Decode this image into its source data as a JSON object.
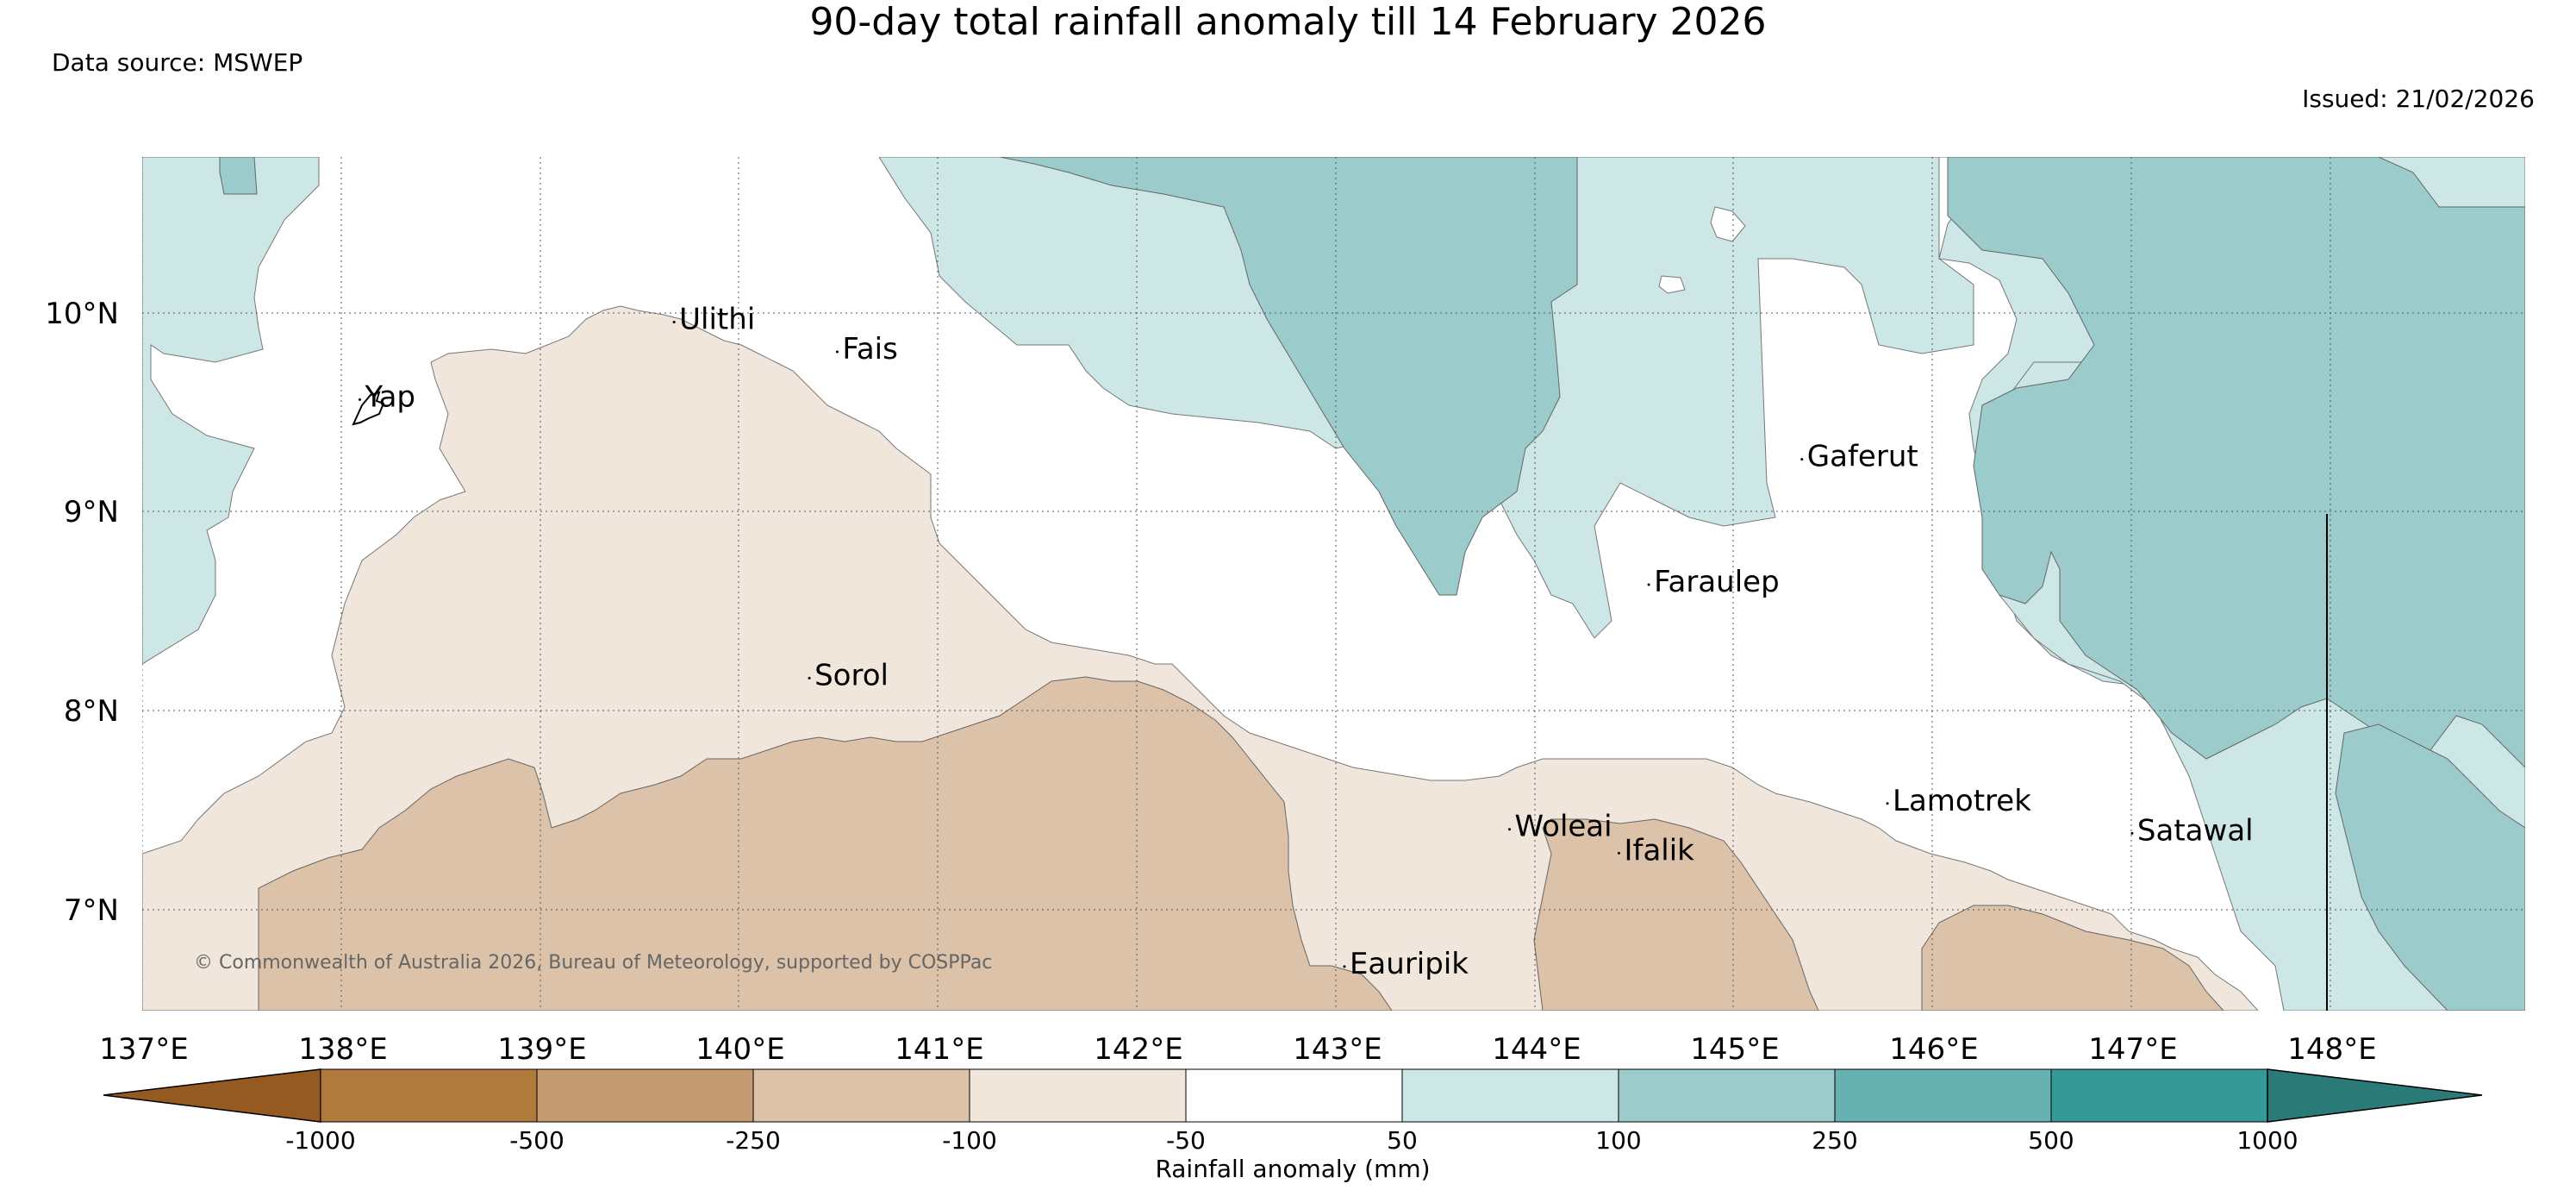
{
  "title": "90-day total rainfall anomaly till 14 February 2026",
  "data_source": "Data source: MSWEP",
  "issued": "Issued: 21/02/2026",
  "copyright": "© Commonwealth of Australia 2026, Bureau of Meteorology, supported by COSPPac",
  "map": {
    "lon_range": [
      137,
      148.85
    ],
    "lat_range": [
      6.5,
      10.8
    ],
    "lon_ticks": [
      "137°E",
      "138°E",
      "139°E",
      "140°E",
      "141°E",
      "142°E",
      "143°E",
      "144°E",
      "145°E",
      "146°E",
      "147°E",
      "148°E"
    ],
    "lat_ticks": [
      "10°N",
      "9°N",
      "8°N",
      "7°N"
    ],
    "places": [
      {
        "name": "Ulithi",
        "lon": 139.7,
        "lat": 9.92
      },
      {
        "name": "Fais",
        "lon": 140.52,
        "lat": 9.77
      },
      {
        "name": "Yap",
        "lon": 138.12,
        "lat": 9.53
      },
      {
        "name": "Gaferut",
        "lon": 145.37,
        "lat": 9.23
      },
      {
        "name": "Faraulep",
        "lon": 144.6,
        "lat": 8.6
      },
      {
        "name": "Sorol",
        "lon": 140.38,
        "lat": 8.13
      },
      {
        "name": "Woleai",
        "lon": 143.9,
        "lat": 7.37
      },
      {
        "name": "Ifalik",
        "lon": 144.45,
        "lat": 7.25
      },
      {
        "name": "Lamotrek",
        "lon": 145.8,
        "lat": 7.5
      },
      {
        "name": "Satawal",
        "lon": 147.03,
        "lat": 7.35
      },
      {
        "name": "Eauripik",
        "lon": 143.07,
        "lat": 6.68
      }
    ]
  },
  "colorbar": {
    "label": "Rainfall anomaly (mm)",
    "ticks": [
      "-1000",
      "-500",
      "-250",
      "-100",
      "-50",
      "50",
      "100",
      "250",
      "500",
      "1000"
    ],
    "colors": [
      "#945a22",
      "#b07a3c",
      "#c49b71",
      "#dbc2a8",
      "#f1e6dc",
      "#ffffff",
      "#cde6e6",
      "#9ccbcb",
      "#67b1b0",
      "#359a97",
      "#2a7a78"
    ]
  }
}
